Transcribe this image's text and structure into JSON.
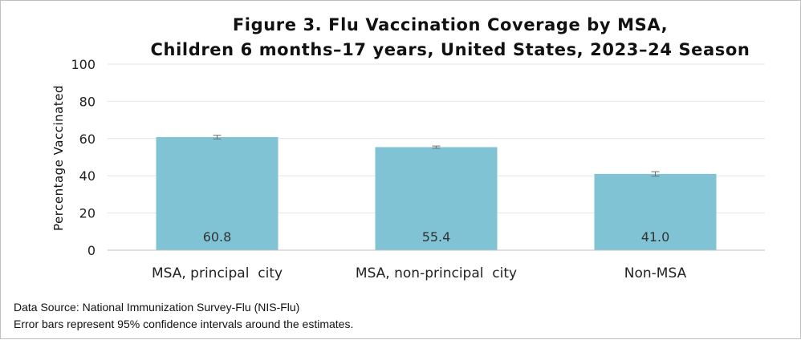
{
  "chart_data": {
    "type": "bar",
    "title_lines": [
      "Figure 3. Flu Vaccination Coverage by MSA,",
      "Children 6 months–17 years, United States, 2023–24 Season"
    ],
    "ylabel": "Percentage Vaccinated",
    "xlabel": "",
    "ylim": [
      0,
      100
    ],
    "yticks": [
      0,
      20,
      40,
      60,
      80,
      100
    ],
    "grid": true,
    "categories": [
      "MSA, principal  city",
      "MSA, non-principal  city",
      "Non-MSA"
    ],
    "values": [
      60.8,
      55.4,
      41.0
    ],
    "data_labels": [
      "60.8",
      "55.4",
      "41.0"
    ],
    "error_bars": [
      {
        "low": 59.8,
        "high": 61.8
      },
      {
        "low": 54.8,
        "high": 56.0
      },
      {
        "low": 39.8,
        "high": 42.2
      }
    ],
    "colors": {
      "bar": "#7fc3d4",
      "gridline": "#e6e6e6",
      "axis": "#bfbfbf",
      "error_bar": "#6f6f6f"
    }
  },
  "footnotes": [
    "Data Source: National Immunization Survey-Flu (NIS-Flu)",
    "Error bars represent 95% confidence intervals around the estimates."
  ]
}
